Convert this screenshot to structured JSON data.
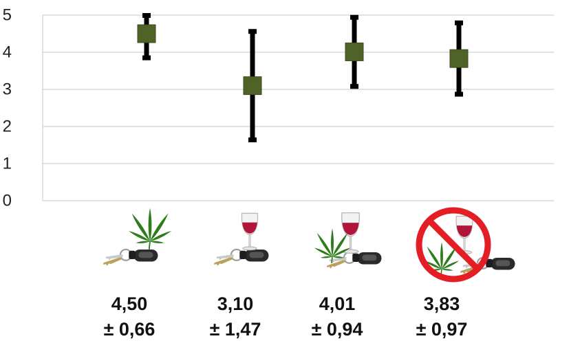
{
  "chart_data": {
    "type": "scatter",
    "title": "",
    "xlabel": "",
    "ylabel": "",
    "ylim": [
      0,
      5
    ],
    "yticks": [
      0,
      1,
      2,
      3,
      4,
      5
    ],
    "grid": true,
    "legend": "none",
    "categories": [
      "drive-cannabis",
      "drive-alcohol",
      "drive-cannabis-alcohol",
      "drive-no-alcohol-cannabis"
    ],
    "series": [
      {
        "values": [
          4.5,
          3.1,
          4.01,
          3.83
        ],
        "error": [
          0.66,
          1.47,
          0.94,
          0.97
        ],
        "color": "#4f6228"
      }
    ],
    "stat_labels": [
      {
        "mean": "4,50",
        "sd": "± 0,66"
      },
      {
        "mean": "3,10",
        "sd": "± 1,47"
      },
      {
        "mean": "4,01",
        "sd": "± 0,94"
      },
      {
        "mean": "3,83",
        "sd": "± 0,97"
      }
    ],
    "icons": [
      [
        "car-keys-icon",
        "cannabis-leaf-icon"
      ],
      [
        "car-keys-icon",
        "wine-glass-icon"
      ],
      [
        "car-keys-icon",
        "wine-glass-icon",
        "cannabis-leaf-icon"
      ],
      [
        "car-keys-icon",
        "wine-glass-icon",
        "cannabis-leaf-icon",
        "prohibited-sign-icon"
      ]
    ],
    "colors": {
      "marker": "#4f6228",
      "marker_stroke": "#3c4c1d",
      "error_bar": "#000000",
      "grid": "#d9d9d9",
      "wine": "#b1163a",
      "leaf": "#2e7d1c",
      "prohibited": "#e31e24"
    }
  }
}
